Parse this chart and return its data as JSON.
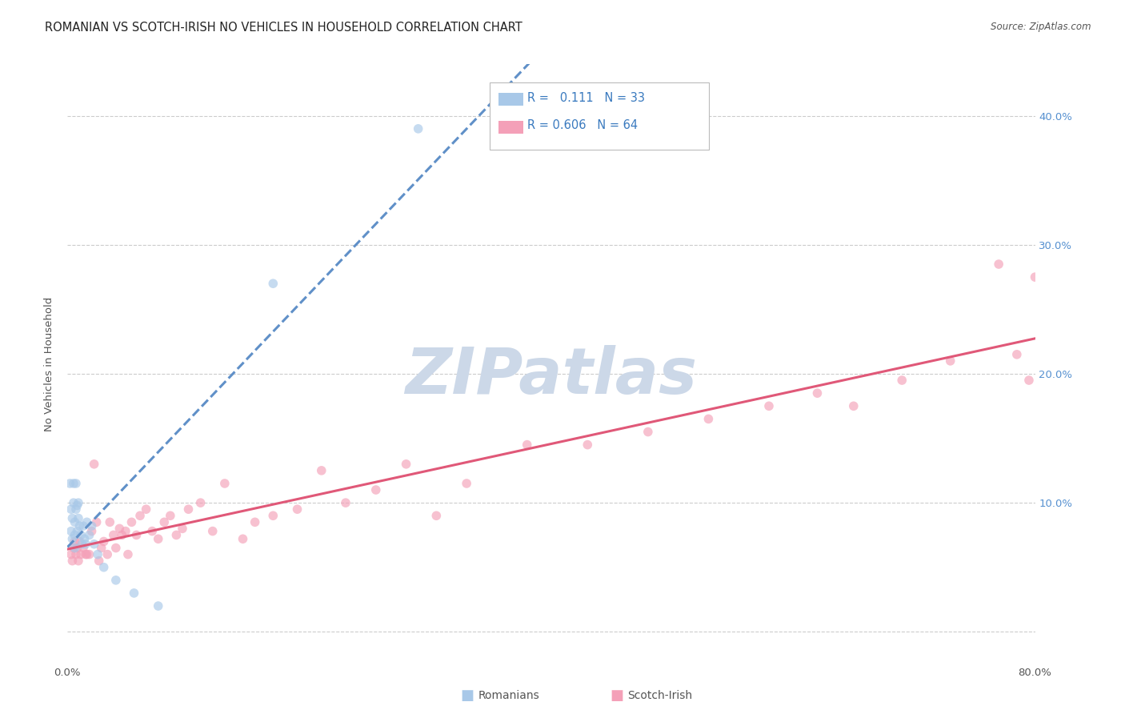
{
  "title": "ROMANIAN VS SCOTCH-IRISH NO VEHICLES IN HOUSEHOLD CORRELATION CHART",
  "source": "Source: ZipAtlas.com",
  "ylabel": "No Vehicles in Household",
  "xlim": [
    0.0,
    0.8
  ],
  "ylim": [
    -0.025,
    0.44
  ],
  "ytick_values": [
    0.0,
    0.1,
    0.2,
    0.3,
    0.4
  ],
  "ytick_labels": [
    "",
    "10.0%",
    "20.0%",
    "30.0%",
    "40.0%"
  ],
  "xtick_values": [
    0.0,
    0.1,
    0.2,
    0.3,
    0.4,
    0.5,
    0.6,
    0.7,
    0.8
  ],
  "xtick_labels": [
    "0.0%",
    "",
    "",
    "",
    "",
    "",
    "",
    "",
    "80.0%"
  ],
  "legend_label_romanian": "Romanians",
  "legend_label_scotch": "Scotch-Irish",
  "romanian_color": "#a8c8e8",
  "scotch_color": "#f4a0b8",
  "romanian_line_color": "#6090c8",
  "scotch_line_color": "#e05878",
  "title_color": "#222222",
  "source_color": "#555555",
  "tick_color": "#5590d0",
  "label_color": "#555555",
  "grid_color": "#cccccc",
  "bg_color": "#ffffff",
  "watermark_text": "ZIPatlas",
  "romanian_x": [
    0.002,
    0.003,
    0.003,
    0.004,
    0.004,
    0.005,
    0.005,
    0.006,
    0.006,
    0.006,
    0.007,
    0.007,
    0.008,
    0.008,
    0.009,
    0.009,
    0.01,
    0.011,
    0.012,
    0.013,
    0.014,
    0.015,
    0.016,
    0.018,
    0.02,
    0.022,
    0.025,
    0.03,
    0.04,
    0.055,
    0.075,
    0.17,
    0.29
  ],
  "romanian_y": [
    0.115,
    0.095,
    0.078,
    0.088,
    0.072,
    0.115,
    0.1,
    0.085,
    0.075,
    0.065,
    0.095,
    0.115,
    0.098,
    0.078,
    0.1,
    0.088,
    0.082,
    0.075,
    0.068,
    0.082,
    0.072,
    0.068,
    0.085,
    0.075,
    0.082,
    0.068,
    0.06,
    0.05,
    0.04,
    0.03,
    0.02,
    0.27,
    0.39
  ],
  "scotch_x": [
    0.003,
    0.004,
    0.005,
    0.006,
    0.007,
    0.008,
    0.009,
    0.01,
    0.011,
    0.013,
    0.015,
    0.016,
    0.018,
    0.02,
    0.022,
    0.024,
    0.026,
    0.028,
    0.03,
    0.033,
    0.035,
    0.038,
    0.04,
    0.043,
    0.045,
    0.048,
    0.05,
    0.053,
    0.057,
    0.06,
    0.065,
    0.07,
    0.075,
    0.08,
    0.085,
    0.09,
    0.095,
    0.1,
    0.11,
    0.12,
    0.13,
    0.145,
    0.155,
    0.17,
    0.19,
    0.21,
    0.23,
    0.255,
    0.28,
    0.305,
    0.33,
    0.38,
    0.43,
    0.48,
    0.53,
    0.58,
    0.62,
    0.65,
    0.69,
    0.73,
    0.77,
    0.785,
    0.795,
    0.8
  ],
  "scotch_y": [
    0.06,
    0.055,
    0.065,
    0.07,
    0.06,
    0.065,
    0.055,
    0.07,
    0.06,
    0.065,
    0.06,
    0.06,
    0.06,
    0.078,
    0.13,
    0.085,
    0.055,
    0.065,
    0.07,
    0.06,
    0.085,
    0.075,
    0.065,
    0.08,
    0.075,
    0.078,
    0.06,
    0.085,
    0.075,
    0.09,
    0.095,
    0.078,
    0.072,
    0.085,
    0.09,
    0.075,
    0.08,
    0.095,
    0.1,
    0.078,
    0.115,
    0.072,
    0.085,
    0.09,
    0.095,
    0.125,
    0.1,
    0.11,
    0.13,
    0.09,
    0.115,
    0.145,
    0.145,
    0.155,
    0.165,
    0.175,
    0.185,
    0.175,
    0.195,
    0.21,
    0.285,
    0.215,
    0.195,
    0.275
  ],
  "marker_size": 70,
  "marker_alpha": 0.65,
  "title_fontsize": 10.5,
  "source_fontsize": 8.5,
  "axis_label_fontsize": 9.5,
  "tick_fontsize": 9.5,
  "legend_fontsize": 10.5
}
